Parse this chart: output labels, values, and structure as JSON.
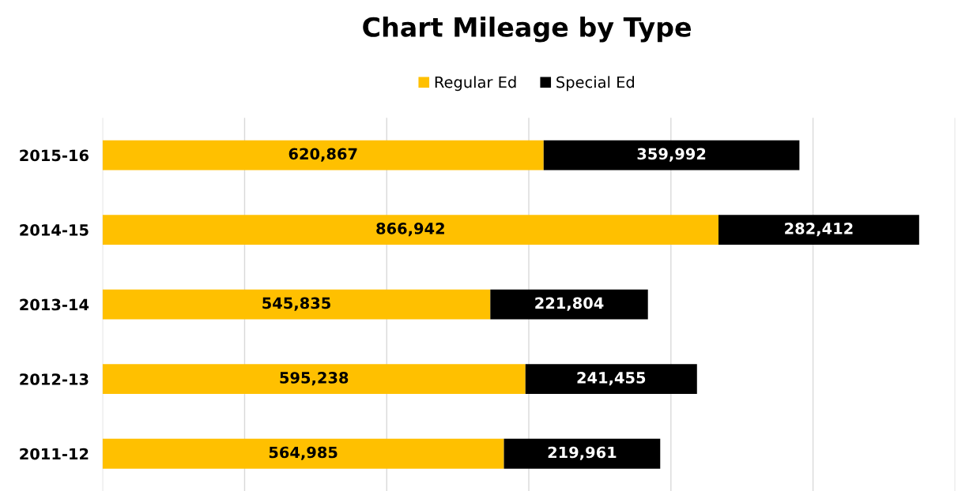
{
  "chart_data": {
    "type": "bar",
    "orientation": "horizontal",
    "stacked": true,
    "title": "Chart Mileage by Type",
    "categories": [
      "2015-16",
      "2014-15",
      "2013-14",
      "2012-13",
      "2011-12"
    ],
    "series": [
      {
        "name": "Regular Ed",
        "color": "#ffc000",
        "values": [
          620867,
          866942,
          545835,
          595238,
          564985
        ],
        "value_labels": [
          "620,867",
          "866,942",
          "545,835",
          "595,238",
          "564,985"
        ]
      },
      {
        "name": "Special Ed",
        "color": "#000000",
        "values": [
          359992,
          282412,
          221804,
          241455,
          219961
        ],
        "value_labels": [
          "359,992",
          "282,412",
          "221,804",
          "241,455",
          "219,961"
        ]
      }
    ],
    "xlim": [
      0,
      1200000
    ],
    "xticks": [
      {
        "value": 0,
        "label": null
      },
      {
        "value": 200000,
        "label": null
      },
      {
        "value": 400000,
        "label": null
      },
      {
        "value": 600000,
        "label": null
      },
      {
        "value": 800000,
        "label": null
      },
      {
        "value": 1000000,
        "label": null
      },
      {
        "value": 1200000,
        "label": null
      }
    ],
    "grid": "x",
    "legend": "top",
    "tick_labels": "y"
  }
}
